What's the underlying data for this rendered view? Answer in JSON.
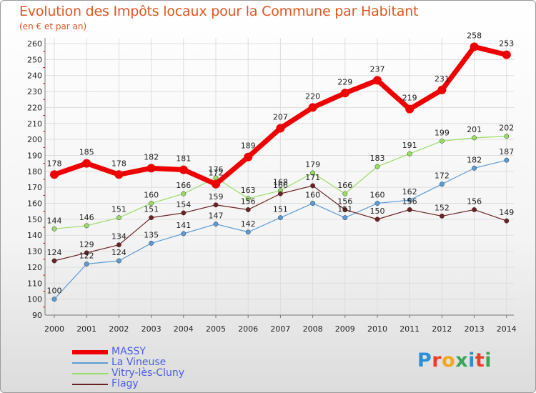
{
  "chart_data": {
    "type": "line",
    "title": "Evolution des Impôts locaux pour la Commune par Habitant",
    "subtitle": "(en € et par an)",
    "categories": [
      "2000",
      "2001",
      "2002",
      "2003",
      "2004",
      "2005",
      "2006",
      "2007",
      "2008",
      "2009",
      "2010",
      "2011",
      "2012",
      "2013",
      "2014"
    ],
    "ylim": [
      90,
      260
    ],
    "yticks": [
      90,
      100,
      110,
      120,
      130,
      140,
      150,
      160,
      170,
      180,
      190,
      200,
      210,
      220,
      230,
      240,
      250,
      260
    ],
    "grid": "horizontal",
    "legend_position": "bottom-left",
    "series": [
      {
        "name": "MASSY",
        "color": "#ee0000",
        "values": [
          178,
          185,
          178,
          182,
          181,
          172,
          189,
          207,
          220,
          229,
          237,
          219,
          231,
          258,
          253
        ],
        "labels": [
          "178",
          "185",
          "178",
          "182",
          "181",
          "172",
          "189",
          "207",
          "220",
          "229",
          "237",
          "219",
          "231",
          "258",
          "253"
        ]
      },
      {
        "name": "La Vineuse",
        "color": "#5b9bd5",
        "values": [
          100,
          122,
          124,
          135,
          141,
          147,
          142,
          151,
          160,
          151,
          160,
          162,
          172,
          182,
          187
        ],
        "labels": [
          "100",
          "122",
          "124",
          "135",
          "141",
          "147",
          "142",
          "151",
          "160",
          "151",
          "160",
          "162",
          "172",
          "182",
          "187"
        ]
      },
      {
        "name": "Vitry-lès-Cluny",
        "color": "#99dd66",
        "values": [
          144,
          146,
          151,
          160,
          166,
          176,
          163,
          168,
          179,
          166,
          183,
          191,
          199,
          201,
          202
        ],
        "labels": [
          "144",
          "146",
          "151",
          "160",
          "166",
          "176",
          "163",
          "168",
          "179",
          "166",
          "183",
          "191",
          "199",
          "201",
          "202"
        ]
      },
      {
        "name": "Flagy",
        "color": "#6b2222",
        "values": [
          124,
          129,
          134,
          151,
          154,
          159,
          156,
          166,
          171,
          156,
          150,
          156,
          152,
          156,
          149
        ],
        "labels": [
          "124",
          "129",
          "134",
          "151",
          "154",
          "159",
          "156",
          "166",
          "171",
          "156",
          "150",
          "156",
          "152",
          "156",
          "149"
        ]
      }
    ]
  },
  "logo": {
    "text": "Proxiti"
  }
}
